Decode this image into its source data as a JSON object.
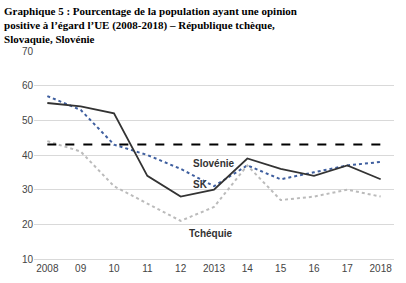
{
  "chart_data": {
    "type": "line",
    "title": "Graphique 5 : Pourcentage de la population ayant une opinion positive à l’égard l’UE (2008-2018) – République tchèque, Slovaquie, Slovénie",
    "categories": [
      "2008",
      "09",
      "10",
      "11",
      "12",
      "2013",
      "14",
      "15",
      "16",
      "17",
      "2018"
    ],
    "series": [
      {
        "name": "Slovénie",
        "color": "#3f5f9f",
        "line_style": "dot",
        "values": [
          57,
          53,
          43,
          40,
          36,
          31,
          37,
          33,
          35,
          37,
          38
        ]
      },
      {
        "name": "SK",
        "color": "#333333",
        "line_style": "solid",
        "values": [
          55,
          54,
          52,
          34,
          28,
          30,
          39,
          36,
          34,
          37,
          33
        ]
      },
      {
        "name": "Tchéquie",
        "color": "#bbbbbb",
        "line_style": "dot",
        "values": [
          44,
          41,
          31,
          26,
          21,
          25,
          37,
          27,
          28,
          30,
          28
        ]
      },
      {
        "color": "#000000",
        "line_style": "dash",
        "values": [
          43,
          43,
          43,
          43,
          43,
          43,
          43,
          43,
          43,
          43,
          43
        ]
      }
    ],
    "ylim": [
      10,
      70
    ],
    "yticks": [
      10,
      20,
      30,
      40,
      50,
      60,
      70
    ],
    "grid": true
  }
}
